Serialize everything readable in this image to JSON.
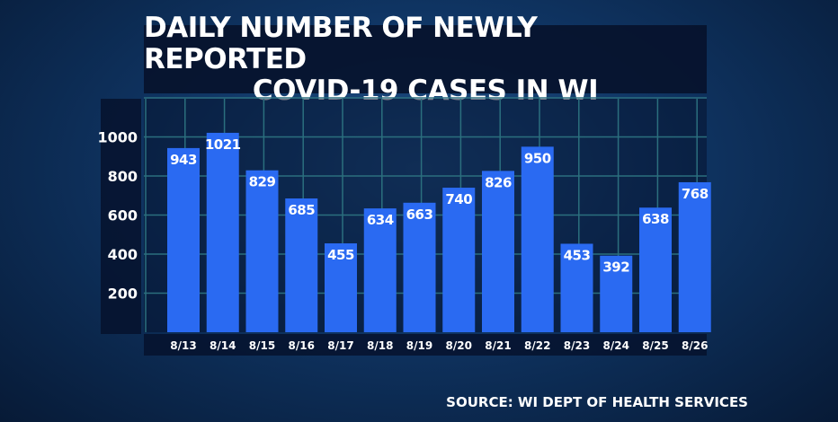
{
  "chart_data": {
    "type": "bar",
    "title_lines": [
      "DAILY NUMBER OF NEWLY REPORTED",
      "COVID-19 CASES IN WI"
    ],
    "categories": [
      "8/13",
      "8/14",
      "8/15",
      "8/16",
      "8/17",
      "8/18",
      "8/19",
      "8/20",
      "8/21",
      "8/22",
      "8/23",
      "8/24",
      "8/25",
      "8/26"
    ],
    "values": [
      943,
      1021,
      829,
      685,
      455,
      634,
      663,
      740,
      826,
      950,
      453,
      392,
      638,
      768
    ],
    "yticks": [
      200,
      400,
      600,
      800,
      1000
    ],
    "ylim": [
      0,
      1200
    ],
    "grid": true,
    "bar_color": "#2a6af2",
    "source": "SOURCE: WI DEPT OF HEALTH SERVICES"
  }
}
